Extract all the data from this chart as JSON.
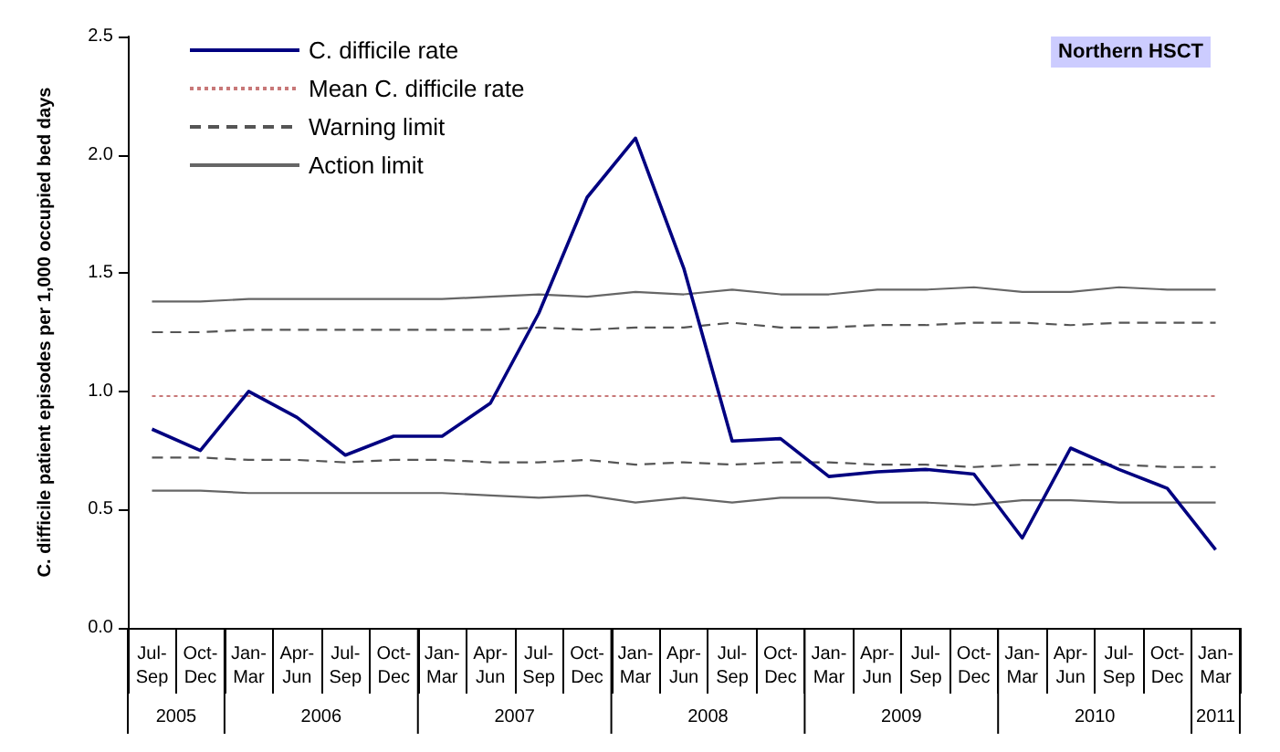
{
  "chart_data": {
    "type": "line",
    "ylabel": "C. difficile patient episodes per 1,000 occupied bed days",
    "categories": [
      "Jul-Sep",
      "Oct-Dec",
      "Jan-Mar",
      "Apr-Jun",
      "Jul-Sep",
      "Oct-Dec",
      "Jan-Mar",
      "Apr-Jun",
      "Jul-Sep",
      "Oct-Dec",
      "Jan-Mar",
      "Apr-Jun",
      "Jul-Sep",
      "Oct-Dec",
      "Jan-Mar",
      "Apr-Jun",
      "Jul-Sep",
      "Oct-Dec",
      "Jan-Mar",
      "Apr-Jun",
      "Jul-Sep",
      "Oct-Dec",
      "Jan-Mar"
    ],
    "series": [
      {
        "name": "C. difficile rate",
        "color": "#000080",
        "line_style": "solid",
        "values": [
          0.84,
          0.75,
          1.0,
          0.89,
          0.73,
          0.81,
          0.81,
          0.95,
          1.33,
          1.82,
          2.07,
          1.52,
          0.79,
          0.8,
          0.64,
          0.66,
          0.67,
          0.65,
          0.38,
          0.76,
          0.67,
          0.59,
          0.33
        ]
      },
      {
        "name": "Mean C. difficile rate",
        "color": "#c87878",
        "line_style": "dotted",
        "values": [
          0.98,
          0.98,
          0.98,
          0.98,
          0.98,
          0.98,
          0.98,
          0.98,
          0.98,
          0.98,
          0.98,
          0.98,
          0.98,
          0.98,
          0.98,
          0.98,
          0.98,
          0.98,
          0.98,
          0.98,
          0.98,
          0.98,
          0.98
        ]
      },
      {
        "name": "Warning limit",
        "color": "#555555",
        "line_style": "dashed",
        "values": [
          1.25,
          1.25,
          1.26,
          1.26,
          1.26,
          1.26,
          1.26,
          1.26,
          1.27,
          1.26,
          1.27,
          1.27,
          1.29,
          1.27,
          1.27,
          1.28,
          1.28,
          1.29,
          1.29,
          1.28,
          1.29,
          1.29,
          1.29
        ]
      },
      {
        "name": "Action limit",
        "color": "#666666",
        "line_style": "solid",
        "values": [
          1.38,
          1.38,
          1.39,
          1.39,
          1.39,
          1.39,
          1.39,
          1.4,
          1.41,
          1.4,
          1.42,
          1.41,
          1.43,
          1.41,
          1.41,
          1.43,
          1.43,
          1.44,
          1.42,
          1.42,
          1.44,
          1.43,
          1.43
        ]
      },
      {
        "color": "#555555",
        "line_style": "dashed",
        "values": [
          0.72,
          0.72,
          0.71,
          0.71,
          0.7,
          0.71,
          0.71,
          0.7,
          0.7,
          0.71,
          0.69,
          0.7,
          0.69,
          0.7,
          0.7,
          0.69,
          0.69,
          0.68,
          0.69,
          0.69,
          0.69,
          0.68,
          0.68
        ]
      },
      {
        "color": "#666666",
        "line_style": "solid",
        "values": [
          0.58,
          0.58,
          0.57,
          0.57,
          0.57,
          0.57,
          0.57,
          0.56,
          0.55,
          0.56,
          0.53,
          0.55,
          0.53,
          0.55,
          0.55,
          0.53,
          0.53,
          0.52,
          0.54,
          0.54,
          0.53,
          0.53,
          0.53
        ]
      }
    ],
    "ylim": [
      0,
      2.5
    ],
    "yticks": [
      {
        "value": 0,
        "label": "0.0"
      },
      {
        "value": 0.5,
        "label": "0.5"
      },
      {
        "value": 1,
        "label": "1.0"
      },
      {
        "value": 1.5,
        "label": "1.5"
      },
      {
        "value": 2,
        "label": "2.0"
      },
      {
        "value": 2.5,
        "label": "2.5"
      }
    ],
    "annotations": [
      "Northern HSCT",
      "2005",
      "2006",
      "2007",
      "2008",
      "2009",
      "2010",
      "2011"
    ],
    "legend": "top left",
    "grid": false,
    "marker": "none"
  }
}
